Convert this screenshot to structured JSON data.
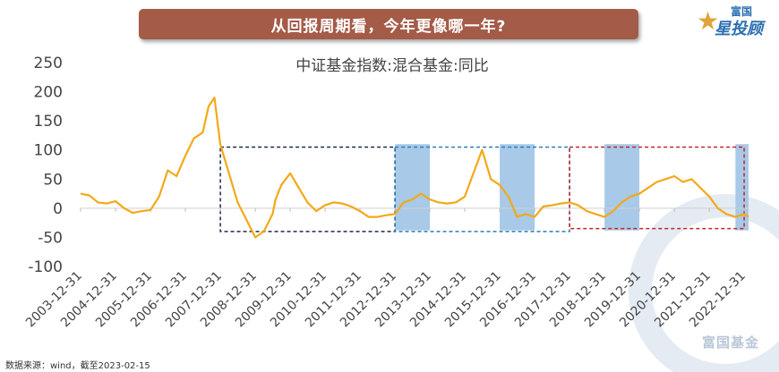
{
  "header": {
    "banner_title": "从回报周期看，今年更像哪一年?",
    "logo_top": "富国",
    "logo_main": "星投顾",
    "logo_star": "★"
  },
  "footer": {
    "source": "数据来源：wind，截至2023-02-15",
    "watermark": "富国基金"
  },
  "colors": {
    "banner": "#a45b48",
    "line": "#f3a918",
    "shade": "#a8c9e8",
    "box1": "#1d2a4d",
    "box2": "#2a7db8",
    "box3": "#c0252a"
  },
  "chart_data": {
    "type": "line",
    "title": "中证基金指数:混合基金:同比",
    "ylim": [
      -100,
      250
    ],
    "yticks": [
      250,
      200,
      150,
      100,
      50,
      0,
      -50,
      -100
    ],
    "xlim": [
      "2003-12-31",
      "2023-02-15"
    ],
    "xticks": [
      "2003-12-31",
      "2004-12-31",
      "2005-12-31",
      "2006-12-31",
      "2007-12-31",
      "2008-12-31",
      "2009-12-31",
      "2010-12-31",
      "2011-12-31",
      "2012-12-31",
      "2013-12-31",
      "2014-12-31",
      "2015-12-31",
      "2016-12-31",
      "2017-12-31",
      "2018-12-31",
      "2019-12-31",
      "2020-12-31",
      "2021-12-31",
      "2022-12-31"
    ],
    "grid": false,
    "legend": "none",
    "series": [
      {
        "x": [
          "2003-12-31",
          "2004-03-31",
          "2004-06-30",
          "2004-09-30",
          "2004-12-31",
          "2005-03-31",
          "2005-06-30",
          "2005-09-30",
          "2005-12-31",
          "2006-03-31",
          "2006-06-30",
          "2006-09-30",
          "2006-12-31",
          "2007-03-31",
          "2007-06-30",
          "2007-08-31",
          "2007-10-31",
          "2007-12-31",
          "2008-03-31",
          "2008-06-30",
          "2008-09-30",
          "2008-11-30",
          "2008-12-31",
          "2009-03-31",
          "2009-06-30",
          "2009-07-31",
          "2009-09-30",
          "2009-12-31",
          "2010-03-31",
          "2010-06-30",
          "2010-09-30",
          "2010-12-31",
          "2011-03-31",
          "2011-06-30",
          "2011-09-30",
          "2011-12-31",
          "2012-03-31",
          "2012-06-30",
          "2012-09-30",
          "2012-12-31",
          "2013-03-31",
          "2013-06-30",
          "2013-09-30",
          "2013-12-31",
          "2014-03-31",
          "2014-06-30",
          "2014-09-30",
          "2014-12-31",
          "2015-03-31",
          "2015-06-30",
          "2015-09-30",
          "2015-12-31",
          "2016-03-31",
          "2016-06-30",
          "2016-09-30",
          "2016-12-31",
          "2017-03-31",
          "2017-06-30",
          "2017-09-30",
          "2017-12-31",
          "2018-03-31",
          "2018-06-30",
          "2018-09-30",
          "2018-12-31",
          "2019-03-31",
          "2019-06-30",
          "2019-09-30",
          "2019-12-31",
          "2020-03-31",
          "2020-06-30",
          "2020-09-30",
          "2020-12-31",
          "2021-03-31",
          "2021-06-30",
          "2021-09-30",
          "2021-12-31",
          "2022-03-31",
          "2022-06-30",
          "2022-09-30",
          "2022-12-31",
          "2023-02-15"
        ],
        "y": [
          25,
          22,
          10,
          8,
          12,
          0,
          -8,
          -5,
          -3,
          20,
          65,
          55,
          90,
          120,
          130,
          175,
          190,
          110,
          60,
          10,
          -20,
          -40,
          -50,
          -40,
          -10,
          15,
          40,
          60,
          35,
          10,
          -5,
          5,
          10,
          8,
          3,
          -5,
          -15,
          -15,
          -12,
          -10,
          10,
          15,
          25,
          15,
          10,
          8,
          10,
          20,
          60,
          100,
          50,
          40,
          20,
          -15,
          -10,
          -15,
          3,
          5,
          8,
          10,
          5,
          -5,
          -10,
          -15,
          -5,
          10,
          20,
          25,
          35,
          45,
          50,
          55,
          45,
          50,
          35,
          20,
          0,
          -10,
          -15,
          -10,
          -15
        ]
      }
    ],
    "shaded_periods": [
      [
        "2013-01-01",
        "2013-12-31"
      ],
      [
        "2016-01-01",
        "2016-12-31"
      ],
      [
        "2019-01-01",
        "2019-12-31"
      ],
      [
        "2022-10-01",
        "2023-02-15"
      ]
    ],
    "annotation_boxes": [
      {
        "x": [
          "2008-01-01",
          "2012-12-31"
        ],
        "y": [
          -40,
          105
        ],
        "style": "dashed",
        "color": "#1d2a4d"
      },
      {
        "x": [
          "2012-12-31",
          "2017-12-31"
        ],
        "y": [
          -40,
          105
        ],
        "style": "dashed",
        "color": "#2a7db8"
      },
      {
        "x": [
          "2017-12-31",
          "2022-12-31"
        ],
        "y": [
          -35,
          105
        ],
        "style": "dashed",
        "color": "#c0252a"
      }
    ]
  }
}
